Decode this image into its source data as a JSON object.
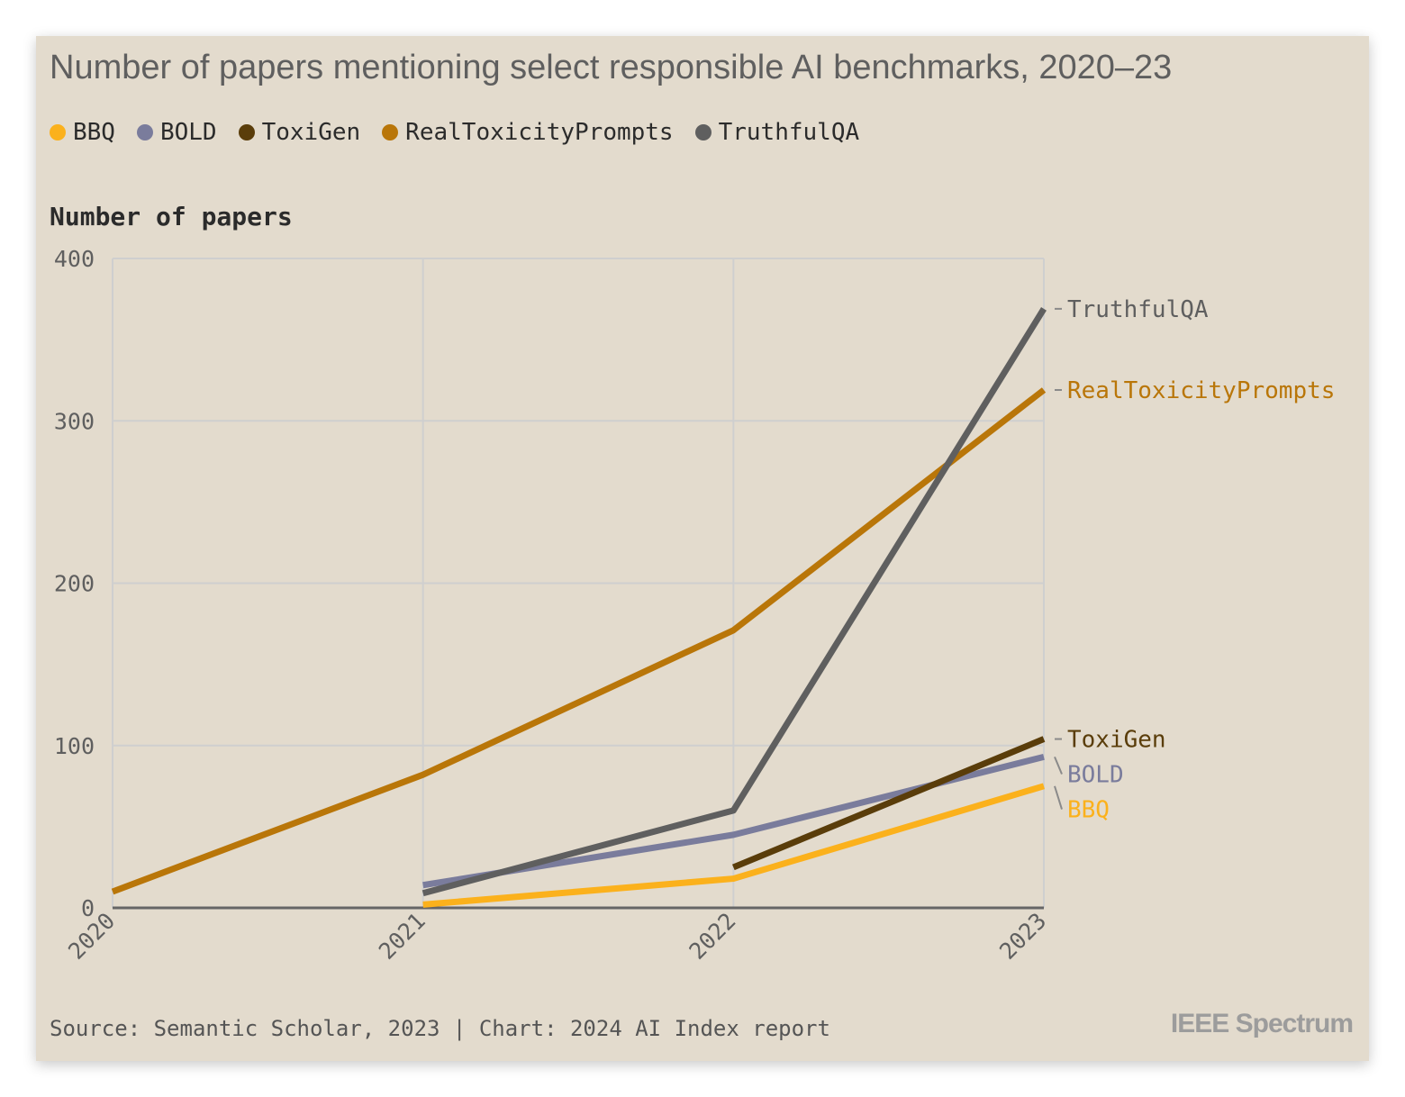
{
  "chart_data": {
    "type": "line",
    "title": "Number of papers mentioning select responsible AI benchmarks, 2020–23",
    "ylabel": "Number of papers",
    "xlabel": "",
    "x": [
      "2020",
      "2021",
      "2022",
      "2023"
    ],
    "ylim": [
      0,
      400
    ],
    "yticks": [
      0,
      100,
      200,
      300,
      400
    ],
    "grid": true,
    "legend_placement": "top-left",
    "series": [
      {
        "name": "BBQ",
        "color": "#fbb11c",
        "values": [
          null,
          2,
          18,
          75
        ]
      },
      {
        "name": "BOLD",
        "color": "#7a7c9c",
        "values": [
          null,
          14,
          45,
          93
        ]
      },
      {
        "name": "ToxiGen",
        "color": "#5a3d0a",
        "values": [
          null,
          null,
          25,
          104
        ]
      },
      {
        "name": "RealToxicityPrompts",
        "color": "#b97609",
        "values": [
          10,
          82,
          171,
          319
        ]
      },
      {
        "name": "TruthfulQA",
        "color": "#5f5f5f",
        "values": [
          null,
          9,
          60,
          369
        ]
      }
    ]
  },
  "footer": {
    "source": "Source: Semantic Scholar, 2023 | Chart: 2024 AI Index report",
    "brand": "IEEE Spectrum"
  }
}
